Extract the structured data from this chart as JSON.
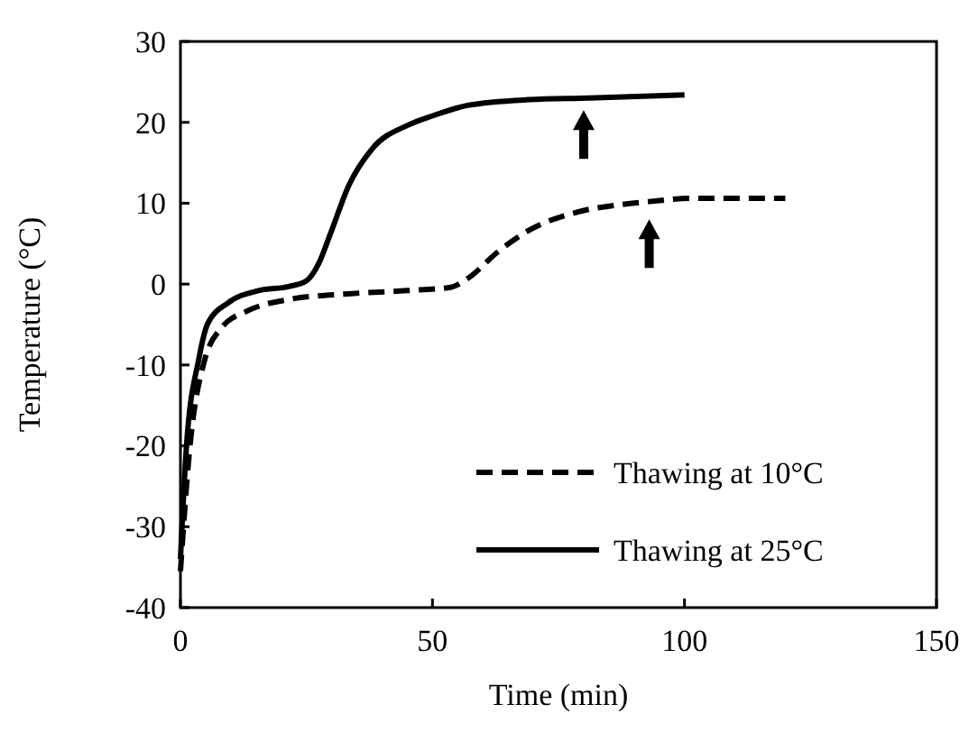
{
  "chart_data": {
    "type": "line",
    "xlabel": "Time (min)",
    "ylabel": "Temperature (°C)",
    "xlim": [
      0,
      150
    ],
    "xticks": [
      0,
      50,
      100,
      150
    ],
    "ylim": [
      -40,
      30
    ],
    "yticks": [
      -40,
      -30,
      -20,
      -10,
      0,
      10,
      20,
      30
    ],
    "grid": false,
    "legend": "bottom right",
    "series": [
      {
        "name": "Thawing at 10°C",
        "color": "#000000",
        "line_style": "dashed",
        "x": [
          0,
          1.8,
          4.8,
          8.3,
          13,
          21.5,
          33.4,
          45,
          53.6,
          57,
          63,
          69,
          78.7,
          87,
          93,
          101,
          120
        ],
        "values": [
          -35.5,
          -20.6,
          -9.4,
          -5.3,
          -3.4,
          -1.9,
          -1.2,
          -0.8,
          -0.4,
          0.7,
          4,
          6.6,
          8.9,
          9.8,
          10.2,
          10.6,
          10.6
        ]
      },
      {
        "name": "Thawing at 25°C",
        "color": "#000000",
        "line_style": "solid",
        "x": [
          0,
          1.2,
          3.6,
          5.4,
          9.5,
          15.5,
          21.5,
          25,
          27.4,
          29.8,
          33.4,
          38,
          45.3,
          50,
          57,
          69,
          81,
          100
        ],
        "values": [
          -34,
          -20,
          -9.4,
          -4.9,
          -2.3,
          -0.8,
          -0.3,
          0.4,
          2.5,
          6.3,
          12.2,
          16.7,
          19.7,
          20.8,
          22.1,
          22.8,
          23,
          23.4
        ]
      }
    ]
  }
}
